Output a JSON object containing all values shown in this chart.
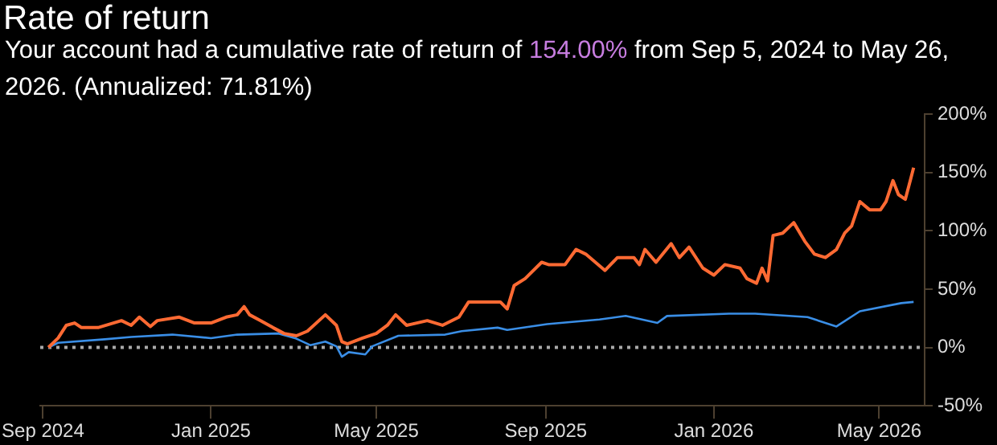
{
  "chart_data": {
    "type": "line",
    "title": "Rate of return",
    "subtitle": "Your account had a cumulative rate of return of 154.00% from Sep 5, 2024 to May 26, 2026. (Annualized: 71.81%)",
    "xlim": [
      "2024-08-30",
      "2026-06-03"
    ],
    "xticks": [
      {
        "value": "2024-09-01",
        "label": "Sep 2024"
      },
      {
        "value": "2025-01-01",
        "label": "Jan 2025"
      },
      {
        "value": "2025-05-01",
        "label": "May 2025"
      },
      {
        "value": "2025-09-01",
        "label": "Sep 2025"
      },
      {
        "value": "2026-01-01",
        "label": "Jan 2026"
      },
      {
        "value": "2026-05-01",
        "label": "May 2026"
      }
    ],
    "ylim": [
      -50,
      200
    ],
    "yticks": [
      {
        "value": -50,
        "label": "-50%"
      },
      {
        "value": 0,
        "label": "0%"
      },
      {
        "value": 50,
        "label": "50%"
      },
      {
        "value": 100,
        "label": "100%"
      },
      {
        "value": 150,
        "label": "150%"
      },
      {
        "value": 200,
        "label": "200%"
      }
    ],
    "grid": false,
    "legend": false,
    "marker": "none",
    "line_style": "solid",
    "ref_lines": [
      {
        "axis": "y",
        "value": 0,
        "color": "#aaaaaa",
        "line_style": "dotted"
      }
    ],
    "series": [
      {
        "color": "#ff6a33",
        "x": [
          "2024-09-05",
          "2024-09-12",
          "2024-09-18",
          "2024-09-24",
          "2024-09-29",
          "2024-10-11",
          "2024-10-28",
          "2024-11-04",
          "2024-11-10",
          "2024-11-18",
          "2024-11-23",
          "2024-12-09",
          "2024-12-20",
          "2025-01-01",
          "2025-01-12",
          "2025-01-20",
          "2025-01-25",
          "2025-01-29",
          "2025-02-06",
          "2025-02-15",
          "2025-02-23",
          "2025-03-04",
          "2025-03-12",
          "2025-03-25",
          "2025-04-02",
          "2025-04-06",
          "2025-04-10",
          "2025-04-21",
          "2025-05-01",
          "2025-05-09",
          "2025-05-15",
          "2025-05-23",
          "2025-06-07",
          "2025-06-18",
          "2025-06-30",
          "2025-07-07",
          "2025-07-19",
          "2025-07-30",
          "2025-08-04",
          "2025-08-09",
          "2025-08-17",
          "2025-08-29",
          "2025-09-03",
          "2025-09-15",
          "2025-09-23",
          "2025-09-30",
          "2025-10-14",
          "2025-10-23",
          "2025-11-04",
          "2025-11-08",
          "2025-11-12",
          "2025-11-20",
          "2025-12-01",
          "2025-12-07",
          "2025-12-14",
          "2025-12-24",
          "2026-01-01",
          "2026-01-09",
          "2026-01-20",
          "2026-01-25",
          "2026-02-01",
          "2026-02-05",
          "2026-02-09",
          "2026-02-13",
          "2026-02-20",
          "2026-02-28",
          "2026-03-08",
          "2026-03-15",
          "2026-03-23",
          "2026-03-31",
          "2026-04-06",
          "2026-04-11",
          "2026-04-17",
          "2026-04-24",
          "2026-05-02",
          "2026-05-06",
          "2026-05-11",
          "2026-05-15",
          "2026-05-20",
          "2026-05-24",
          "2026-05-26"
        ],
        "values": [
          0,
          8,
          19,
          21,
          17,
          17,
          23,
          19,
          26,
          18,
          23,
          26,
          21,
          21,
          26,
          28,
          35,
          28,
          23,
          17,
          12,
          10,
          14,
          28,
          19,
          5,
          3,
          8,
          12,
          19,
          28,
          19,
          23,
          19,
          26,
          39,
          39,
          39,
          33,
          53,
          59,
          73,
          71,
          71,
          84,
          80,
          66,
          77,
          77,
          71,
          84,
          73,
          89,
          77,
          86,
          68,
          62,
          71,
          68,
          59,
          55,
          68,
          57,
          96,
          98,
          107,
          91,
          80,
          77,
          84,
          98,
          104,
          125,
          118,
          118,
          125,
          143,
          131,
          127,
          145,
          154
        ]
      },
      {
        "color": "#3a8ee6",
        "x": [
          "2024-09-05",
          "2024-09-12",
          "2024-10-16",
          "2024-11-04",
          "2024-12-04",
          "2025-01-01",
          "2025-01-20",
          "2025-02-19",
          "2025-03-03",
          "2025-03-14",
          "2025-03-25",
          "2025-04-02",
          "2025-04-06",
          "2025-04-11",
          "2025-04-23",
          "2025-04-28",
          "2025-05-17",
          "2025-06-20",
          "2025-07-02",
          "2025-07-28",
          "2025-08-04",
          "2025-09-02",
          "2025-10-10",
          "2025-10-29",
          "2025-11-21",
          "2025-11-28",
          "2026-01-12",
          "2026-01-31",
          "2026-03-10",
          "2026-03-31",
          "2026-04-17",
          "2026-05-17",
          "2026-05-26"
        ],
        "values": [
          0,
          4,
          7,
          9,
          11,
          8,
          11,
          12,
          8,
          2,
          5,
          1,
          -8,
          -4,
          -6,
          1,
          10,
          11,
          14,
          17,
          15,
          20,
          24,
          27,
          21,
          27,
          29,
          29,
          26,
          18,
          31,
          38,
          39
        ]
      }
    ]
  }
}
